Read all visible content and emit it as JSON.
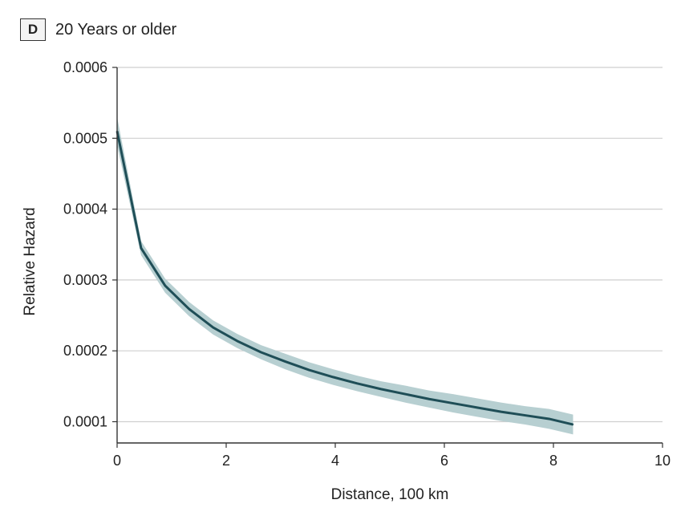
{
  "panel": {
    "letter": "D",
    "title": "20 Years or older"
  },
  "colors": {
    "line": "#1f4e57",
    "band": "#b7cfd1",
    "grid": "#cfcfcf",
    "axis": "#333333"
  },
  "chart_data": {
    "type": "line",
    "xlabel": "Distance, 100 km",
    "ylabel": "Relative Hazard",
    "xlim": [
      0,
      10
    ],
    "ylim": [
      7e-05,
      0.0006
    ],
    "xticks": [
      0,
      2,
      4,
      6,
      8,
      10
    ],
    "xtick_labels": [
      "0",
      "2",
      "4",
      "6",
      "8",
      "10"
    ],
    "yticks": [
      0.0001,
      0.0002,
      0.0003,
      0.0004,
      0.0005,
      0.0006
    ],
    "ytick_labels": [
      "0.0001",
      "0.0002",
      "0.0003",
      "0.0004",
      "0.0005",
      "0.0006"
    ],
    "grid": "horizontal",
    "series": [
      {
        "x": [
          0,
          0.44,
          0.88,
          1.32,
          1.76,
          2.2,
          2.64,
          3.08,
          3.52,
          3.96,
          4.4,
          4.84,
          5.28,
          5.72,
          6.16,
          6.6,
          7.04,
          7.48,
          7.92,
          8.36
        ],
        "values": [
          0.00051,
          0.000345,
          0.000292,
          0.000259,
          0.000233,
          0.000214,
          0.000198,
          0.000185,
          0.000173,
          0.000163,
          0.000154,
          0.000146,
          0.000139,
          0.000132,
          0.000126,
          0.00012,
          0.000114,
          0.000109,
          0.000104,
          9.6e-05
        ],
        "lower": [
          0.00049,
          0.000335,
          0.000282,
          0.000249,
          0.000223,
          0.000204,
          0.000188,
          0.000174,
          0.000162,
          0.000152,
          0.000143,
          0.000135,
          0.000127,
          0.00012,
          0.000113,
          0.000107,
          0.000101,
          9.6e-05,
          9e-05,
          8.2e-05
        ],
        "upper": [
          0.00053,
          0.000355,
          0.000302,
          0.000269,
          0.000243,
          0.000224,
          0.000208,
          0.000196,
          0.000184,
          0.000174,
          0.000165,
          0.000157,
          0.000151,
          0.000144,
          0.000139,
          0.000133,
          0.000127,
          0.000122,
          0.000118,
          0.00011
        ]
      }
    ]
  }
}
